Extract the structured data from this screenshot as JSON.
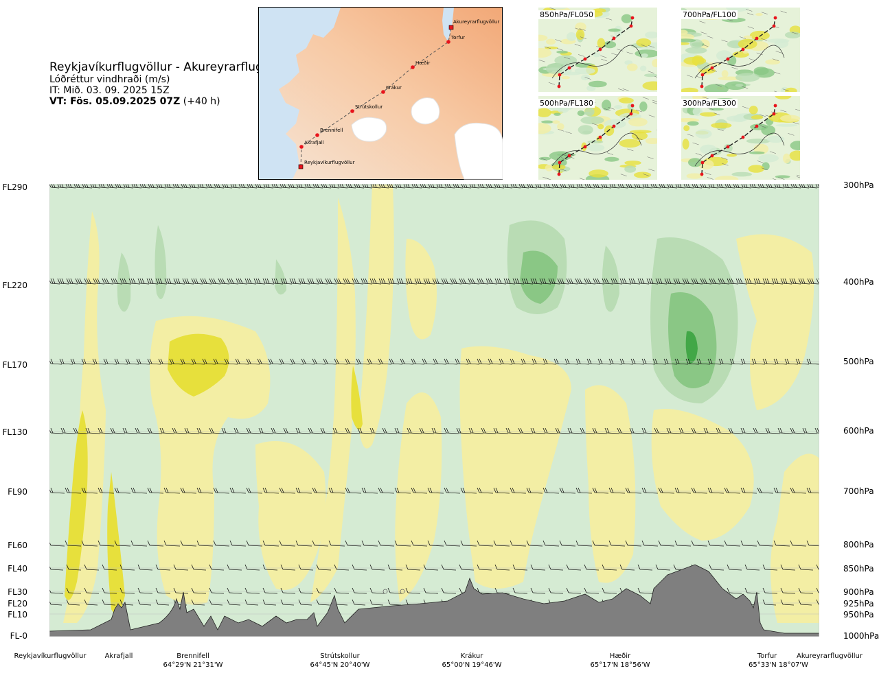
{
  "header": {
    "route": "Reykjavíkurflugvöllur - Akureyrarflugvöllur",
    "parameter": "Lóðréttur vindhraði (m/s)",
    "it": "IT: Mið. 03. 09. 2025 15Z",
    "vt_bold": "VT: Fös. 05.09.2025 07Z",
    "vt_lead": " (+40 h)"
  },
  "map": {
    "waypoints": [
      "Akureyrarflugvöllur",
      "Torfur",
      "Hæðir",
      "Krákur",
      "Strútskollur",
      "Brennifell",
      "Akrafjall",
      "Reykjavíkurflugvöllur"
    ]
  },
  "mini_maps": [
    {
      "label": "850hPa/FL050"
    },
    {
      "label": "700hPa/FL100"
    },
    {
      "label": "500hPa/FL180"
    },
    {
      "label": "300hPa/FL300"
    }
  ],
  "colors": {
    "plot_bg": "#d5ebd3",
    "yellow_light": "#f3eea4",
    "yellow_strong": "#e7e03c",
    "green_light": "#b9dcb4",
    "green_mid": "#8ac785",
    "green_strong": "#42a747",
    "terrain": "#7f7f7f",
    "route_marker": "#e8141c"
  },
  "chart_data": {
    "type": "heatmap",
    "title": "Lóðréttur vindhraði (m/s)",
    "left_axis_labels": [
      "FL290",
      "FL220",
      "FL170",
      "FL130",
      "FL90",
      "FL60",
      "FL40",
      "FL30",
      "FL20",
      "FL10",
      "FL-0"
    ],
    "right_axis_labels": [
      "300hPa",
      "400hPa",
      "500hPa",
      "600hPa",
      "700hPa",
      "800hPa",
      "850hPa",
      "900hPa",
      "925hPa",
      "950hPa",
      "1000hPa"
    ],
    "pressure_levels_hpa": [
      300,
      400,
      500,
      600,
      700,
      800,
      850,
      900,
      925,
      950,
      1000
    ],
    "x_stations": [
      {
        "name": "Reykjavíkurflugvöllur",
        "coord": ""
      },
      {
        "name": "Akrafjall",
        "coord": ""
      },
      {
        "name": "Brennifell",
        "coord": "64°29'N 21°31'W"
      },
      {
        "name": "Strútskollur",
        "coord": "64°45'N 20°40'W"
      },
      {
        "name": "Krákur",
        "coord": "65°00'N 19°46'W"
      },
      {
        "name": "Hæðir",
        "coord": "65°17'N 18°56'W"
      },
      {
        "name": "Torfur",
        "coord": "65°33'N 18°07'W"
      },
      {
        "name": "Akureyrarflugvöllur",
        "coord": ""
      }
    ],
    "grid": true
  }
}
